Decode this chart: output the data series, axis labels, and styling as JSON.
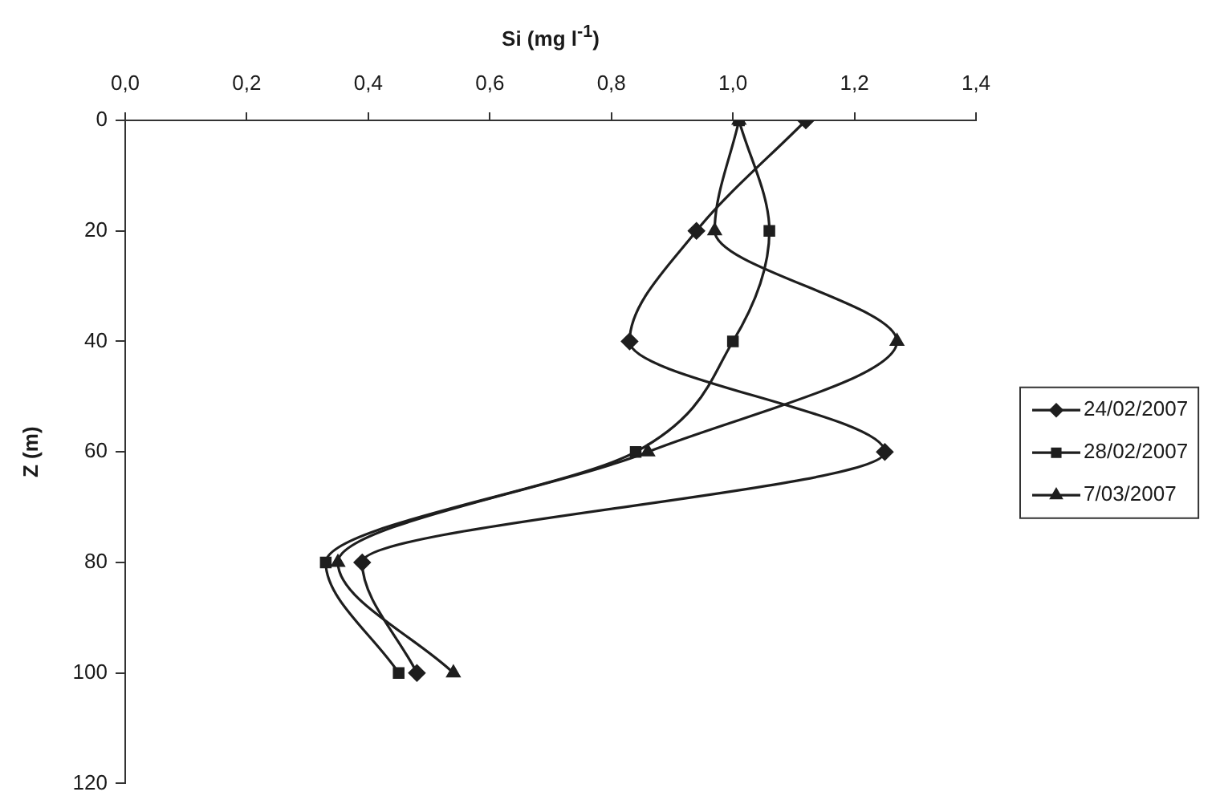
{
  "chart_data": {
    "type": "line",
    "xlabel": "Si (mg l$^{-1}$)",
    "ylabel": "Z (m)",
    "xlim": [
      0,
      1.4
    ],
    "xticks": [
      {
        "value": 0,
        "label": "0,0"
      },
      {
        "value": 0.2,
        "label": "0,2"
      },
      {
        "value": 0.4,
        "label": "0,4"
      },
      {
        "value": 0.6,
        "label": "0,6"
      },
      {
        "value": 0.8,
        "label": "0,8"
      },
      {
        "value": 1.0,
        "label": "1,0"
      },
      {
        "value": 1.2,
        "label": "1,2"
      },
      {
        "value": 1.4,
        "label": "1,4"
      }
    ],
    "ylim": [
      120,
      0
    ],
    "yticks": [
      0,
      20,
      40,
      60,
      80,
      100,
      120
    ],
    "grid": false,
    "legend": "right",
    "series": [
      {
        "name": "24/02/2007",
        "color": "#1e1e1e",
        "marker": "diamond",
        "x": [
          1.12,
          0.94,
          0.83,
          1.25,
          0.39,
          0.48
        ],
        "values": [
          0,
          20,
          40,
          60,
          80,
          100
        ]
      },
      {
        "name": "28/02/2007",
        "color": "#1e1e1e",
        "marker": "square",
        "x": [
          1.01,
          1.06,
          1.0,
          0.84,
          0.33,
          0.45
        ],
        "values": [
          0,
          20,
          40,
          60,
          80,
          100
        ]
      },
      {
        "name": "7/03/2007",
        "color": "#1e1e1e",
        "marker": "triangle",
        "x": [
          1.01,
          0.97,
          1.27,
          0.86,
          0.35,
          0.54
        ],
        "values": [
          0,
          20,
          40,
          60,
          80,
          100
        ]
      }
    ]
  }
}
